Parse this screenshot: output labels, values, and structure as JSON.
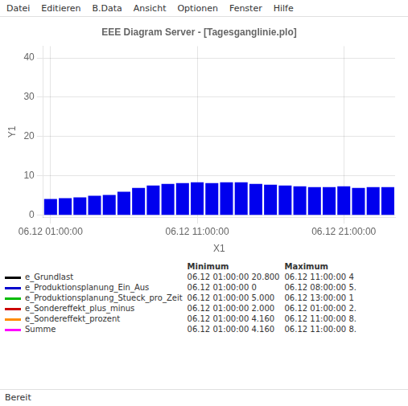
{
  "chart_data": {
    "type": "bar",
    "title": "EEE Diagram Server - [Tagesganglinie.plo]",
    "xlabel": "X1",
    "ylabel": "Y1",
    "categories": [
      "06.12 01:00:00",
      null,
      null,
      null,
      null,
      null,
      null,
      null,
      null,
      null,
      "06.12 11:00:00",
      null,
      null,
      null,
      null,
      null,
      null,
      null,
      null,
      null,
      "06.12 21:00:00",
      null,
      null,
      null
    ],
    "values": [
      4.16,
      4.36,
      4.56,
      4.96,
      5.16,
      5.96,
      6.96,
      7.56,
      7.96,
      8.16,
      8.36,
      8.16,
      8.36,
      8.36,
      7.96,
      7.76,
      7.56,
      7.36,
      7.16,
      7.16,
      7.36,
      6.96,
      7.16,
      7.16
    ],
    "color": "#0000EE",
    "ylim": [
      -0.5,
      43
    ],
    "yticks": [
      0,
      10,
      20,
      30,
      40
    ],
    "grid": true,
    "annotations": {
      "menu": [
        "Datei",
        "Editieren",
        "B.Data",
        "Ansicht",
        "Optionen",
        "Fenster",
        "Hilfe"
      ],
      "columns": [
        "Minimum",
        "Maximum"
      ],
      "rows": [
        {
          "label": "e_Grundlast",
          "color": "#000000",
          "min": "06.12 01:00:00 20.800",
          "max": "06.12 11:00:00 4"
        },
        {
          "label": "e_Produktionsplanung_Ein_Aus",
          "color": "#0000CC",
          "min": "06.12 01:00:00 0",
          "max": "06.12 08:00:00 5."
        },
        {
          "label": "e_Produktionsplanung_Stueck_pro_Zeit",
          "color": "#00BB00",
          "min": "06.12 01:00:00 5.000",
          "max": "06.12 13:00:00 1"
        },
        {
          "label": "e_Sondereffekt_plus_minus",
          "color": "#CC0000",
          "min": "06.12 01:00:00 2.000",
          "max": "06.12 01:00:00 2."
        },
        {
          "label": "e_Sondereffekt_prozent",
          "color": "#FF8C00",
          "min": "06.12 01:00:00 4.160",
          "max": "06.12 11:00:00 8."
        },
        {
          "label": "Summe",
          "color": "#FF00FF",
          "min": "06.12 01:00:00 4.160",
          "max": "06.12 11:00:00 8."
        }
      ],
      "status": "Bereit"
    }
  }
}
